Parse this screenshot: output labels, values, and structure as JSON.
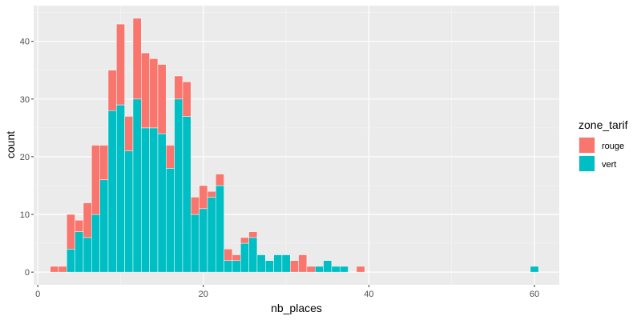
{
  "chart_data": {
    "type": "bar",
    "stacked": true,
    "xlabel": "nb_places",
    "ylabel": "count",
    "xlim": [
      -0.5,
      63
    ],
    "ylim": [
      -2.2,
      46.2
    ],
    "xticks": [
      0,
      20,
      40,
      60
    ],
    "yticks": [
      0,
      10,
      20,
      30,
      40
    ],
    "binwidth": 1,
    "grid": true,
    "legend": {
      "title": "zone_tarif",
      "position": "right"
    },
    "x": [
      2,
      3,
      4,
      5,
      6,
      7,
      8,
      9,
      10,
      11,
      12,
      13,
      14,
      15,
      16,
      17,
      18,
      19,
      20,
      21,
      22,
      23,
      24,
      25,
      26,
      27,
      28,
      29,
      30,
      31,
      32,
      33,
      34,
      35,
      36,
      37,
      39,
      60
    ],
    "series": [
      {
        "name": "vert",
        "color": "#00BFC4",
        "values": [
          0,
          0,
          4,
          7,
          6,
          10,
          16,
          28,
          29,
          21,
          30,
          25,
          25,
          24,
          18,
          30,
          27,
          10,
          11,
          13,
          15,
          2,
          2,
          5,
          6,
          3,
          2,
          3,
          3,
          0,
          0,
          0,
          1,
          2,
          1,
          1,
          0,
          1
        ]
      },
      {
        "name": "rouge",
        "color": "#F8766D",
        "values": [
          1,
          1,
          6,
          2,
          6,
          12,
          6,
          7,
          14,
          6,
          14,
          13,
          12,
          12,
          4,
          4,
          6,
          3,
          4,
          1,
          2,
          2,
          1,
          1,
          1,
          0,
          0,
          0,
          0,
          2,
          3,
          1,
          0,
          0,
          0,
          0,
          1,
          0
        ]
      }
    ]
  }
}
